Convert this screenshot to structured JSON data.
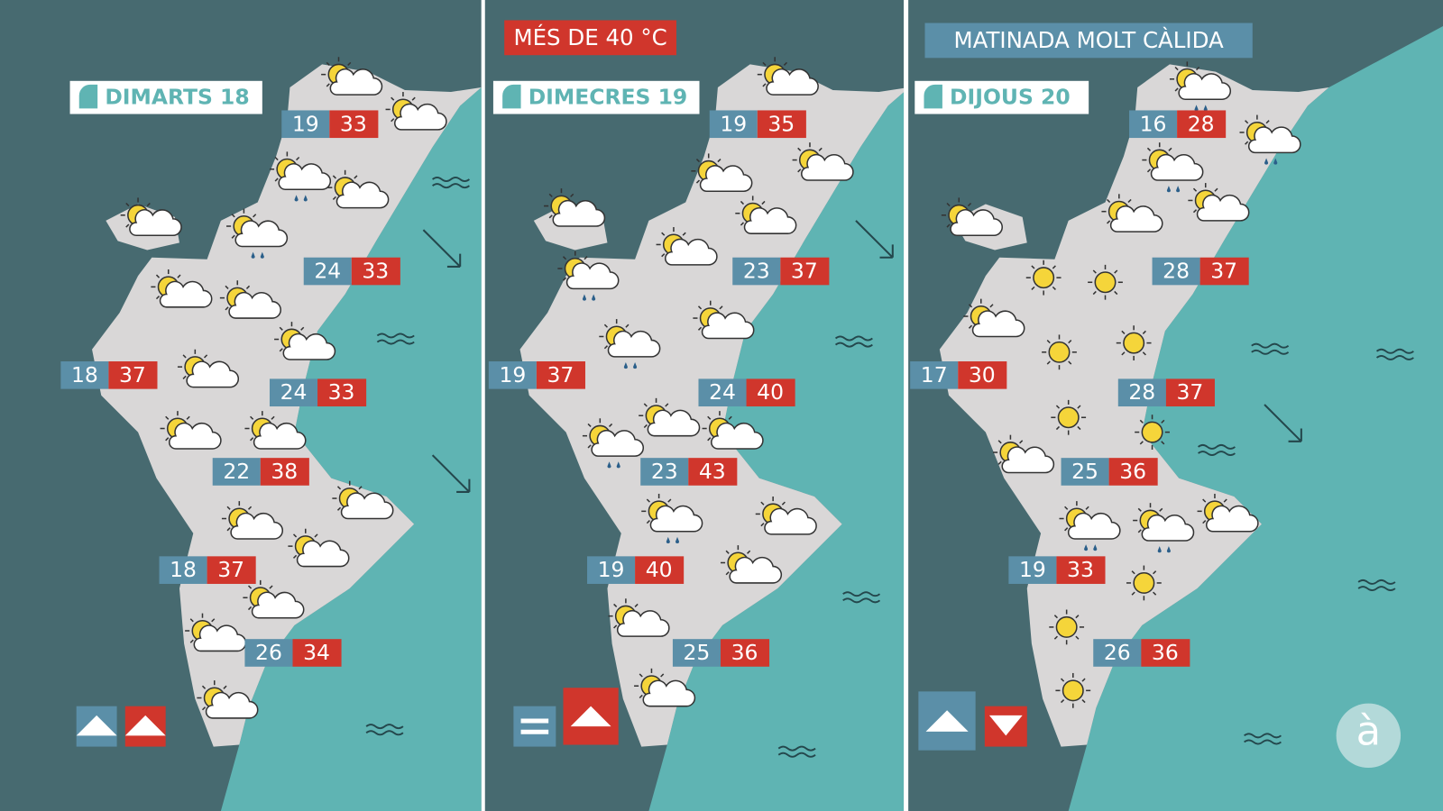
{
  "panels": [
    {
      "day": "DIMARTS 18",
      "temps": [
        {
          "min": 19,
          "max": 33
        },
        {
          "min": 24,
          "max": 33
        },
        {
          "min": 18,
          "max": 37
        },
        {
          "min": 24,
          "max": 33
        },
        {
          "min": 22,
          "max": 38
        },
        {
          "min": 18,
          "max": 37
        },
        {
          "min": 26,
          "max": 34
        }
      ]
    },
    {
      "banner": "MÉS DE 40 °C",
      "day": "DIMECRES 19",
      "temps": [
        {
          "min": 19,
          "max": 35
        },
        {
          "min": 23,
          "max": 37
        },
        {
          "min": 19,
          "max": 37
        },
        {
          "min": 24,
          "max": 40
        },
        {
          "min": 23,
          "max": 43
        },
        {
          "min": 19,
          "max": 40
        },
        {
          "min": 25,
          "max": 36
        }
      ]
    },
    {
      "banner": "MATINADA MOLT CÀLIDA",
      "day": "DIJOUS 20",
      "temps": [
        {
          "min": 16,
          "max": 28
        },
        {
          "min": 28,
          "max": 37
        },
        {
          "min": 17,
          "max": 30
        },
        {
          "min": 28,
          "max": 37
        },
        {
          "min": 25,
          "max": 36
        },
        {
          "min": 19,
          "max": 33
        },
        {
          "min": 26,
          "max": 36
        }
      ]
    }
  ],
  "logo": "à"
}
